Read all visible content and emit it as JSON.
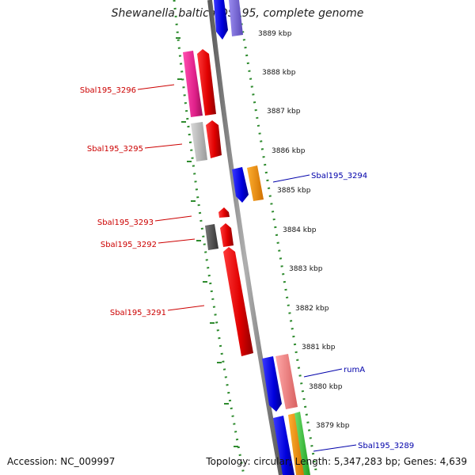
{
  "title": "Shewanella baltica OS195, complete genome",
  "footer": {
    "accession": "Accession: NC_009997",
    "topology": "Topology: circular; Length: 5,347,283 bp; Genes: 4,639"
  },
  "scale": {
    "ticks": [
      {
        "label": "3889 kbp",
        "kbp": 3889
      },
      {
        "label": "3888 kbp",
        "kbp": 3888
      },
      {
        "label": "3887 kbp",
        "kbp": 3887
      },
      {
        "label": "3886 kbp",
        "kbp": 3886
      },
      {
        "label": "3885 kbp",
        "kbp": 3885
      },
      {
        "label": "3884 kbp",
        "kbp": 3884
      },
      {
        "label": "3883 kbp",
        "kbp": 3883
      },
      {
        "label": "3882 kbp",
        "kbp": 3882
      },
      {
        "label": "3881 kbp",
        "kbp": 3881
      },
      {
        "label": "3880 kbp",
        "kbp": 3880
      },
      {
        "label": "3879 kbp",
        "kbp": 3879
      }
    ]
  },
  "colors": {
    "minus_strand_label": "#cc0000",
    "plus_strand_label": "#0000aa",
    "backbone": "#808080",
    "ring": "#2e8b2e"
  },
  "gene_labels": [
    {
      "text": "Sbal195_3296",
      "strand": "minus"
    },
    {
      "text": "Sbal195_3295",
      "strand": "minus"
    },
    {
      "text": "Sbal195_3294",
      "strand": "plus"
    },
    {
      "text": "Sbal195_3293",
      "strand": "minus"
    },
    {
      "text": "Sbal195_3292",
      "strand": "minus"
    },
    {
      "text": "Sbal195_3291",
      "strand": "minus"
    },
    {
      "text": "rumA",
      "strand": "plus"
    },
    {
      "text": "Sbal195_3289",
      "strand": "plus"
    }
  ]
}
